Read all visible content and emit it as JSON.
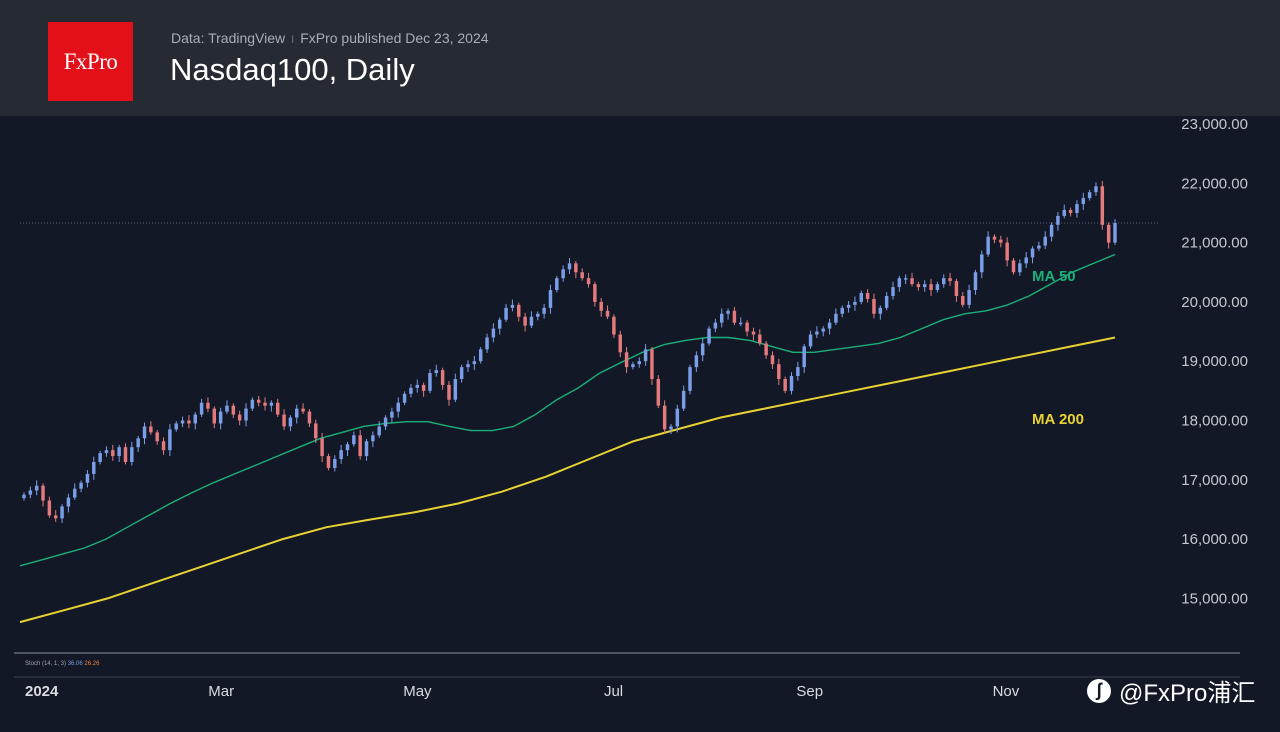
{
  "header": {
    "logo_text": "FxPro",
    "source": "Data: TradingView",
    "publisher": "FxPro published Dec 23, 2024",
    "separator": "I",
    "title": "Nasdaq100, Daily"
  },
  "watermark": {
    "text": "@FxPro浦汇",
    "icon": "weibo-icon"
  },
  "indicator_label": {
    "name": "Stoch (14, 1, 3)",
    "value_k": "36.06",
    "value_d": "26.26"
  },
  "colors": {
    "background": "#121826",
    "header": "#262a33",
    "brand": "#e3101a",
    "up": "#7b9ee8",
    "down": "#e57a7c",
    "ma50": "#1bb07a",
    "ma200": "#e8d232"
  },
  "chart_data": {
    "type": "candlestick",
    "title": "Nasdaq100, Daily",
    "ylim": [
      14300,
      23300
    ],
    "yticks": [
      23000,
      22000,
      21000,
      20000,
      19000,
      18000,
      17000,
      16000,
      15000
    ],
    "ytick_labels": [
      "23,000.00",
      "22,000.00",
      "21,000.00",
      "20,000.00",
      "19,000.00",
      "18,000.00",
      "17,000.00",
      "16,000.00",
      "15,000.00"
    ],
    "xticks": [
      {
        "label": "2024",
        "month": 0
      },
      {
        "label": "Mar",
        "month": 2
      },
      {
        "label": "May",
        "month": 4
      },
      {
        "label": "Jul",
        "month": 6
      },
      {
        "label": "Sep",
        "month": 8
      },
      {
        "label": "Nov",
        "month": 10
      }
    ],
    "last_price": 21330,
    "closes": [
      16750,
      16820,
      16900,
      16650,
      16400,
      16350,
      16550,
      16700,
      16850,
      16950,
      17100,
      17300,
      17450,
      17500,
      17400,
      17550,
      17300,
      17550,
      17700,
      17900,
      17800,
      17650,
      17500,
      17850,
      17950,
      18000,
      17950,
      18100,
      18300,
      18200,
      17950,
      18150,
      18250,
      18100,
      18000,
      18200,
      18350,
      18300,
      18250,
      18300,
      18100,
      17900,
      18050,
      18200,
      18150,
      17950,
      17700,
      17400,
      17200,
      17350,
      17500,
      17600,
      17750,
      17400,
      17650,
      17750,
      17900,
      18050,
      18150,
      18300,
      18450,
      18550,
      18600,
      18500,
      18800,
      18850,
      18600,
      18350,
      18700,
      18900,
      18950,
      19000,
      19200,
      19400,
      19550,
      19700,
      19900,
      19950,
      19750,
      19600,
      19750,
      19800,
      19900,
      20200,
      20400,
      20550,
      20650,
      20500,
      20400,
      20300,
      20000,
      19850,
      19750,
      19450,
      19150,
      18900,
      18950,
      19000,
      19200,
      18700,
      18250,
      17850,
      17900,
      18200,
      18500,
      18900,
      19100,
      19300,
      19550,
      19650,
      19800,
      19850,
      19650,
      19650,
      19500,
      19450,
      19300,
      19100,
      18950,
      18700,
      18500,
      18750,
      18900,
      19250,
      19450,
      19500,
      19550,
      19650,
      19800,
      19900,
      19950,
      20000,
      20150,
      20050,
      19800,
      19900,
      20100,
      20250,
      20400,
      20400,
      20300,
      20250,
      20300,
      20200,
      20300,
      20400,
      20350,
      20100,
      19950,
      20200,
      20500,
      20800,
      21100,
      21050,
      21000,
      20700,
      20500,
      20650,
      20750,
      20900,
      20950,
      21100,
      21300,
      21450,
      21550,
      21500,
      21650,
      21750,
      21850,
      21950,
      21300,
      21000,
      21330
    ],
    "ma50": [
      15550,
      15650,
      15750,
      15850,
      16000,
      16200,
      16400,
      16600,
      16780,
      16950,
      17100,
      17250,
      17400,
      17550,
      17700,
      17800,
      17900,
      17950,
      17980,
      17980,
      17900,
      17830,
      17830,
      17900,
      18100,
      18350,
      18550,
      18800,
      18980,
      19150,
      19280,
      19350,
      19400,
      19400,
      19350,
      19250,
      19150,
      19150,
      19200,
      19250,
      19300,
      19400,
      19550,
      19700,
      19800,
      19850,
      19950,
      20100,
      20300,
      20500,
      20650,
      20800
    ],
    "ma200": [
      14600,
      14800,
      15000,
      15250,
      15500,
      15750,
      16000,
      16200,
      16330,
      16450,
      16600,
      16800,
      17050,
      17350,
      17650,
      17850,
      18050,
      18200,
      18350,
      18500,
      18650,
      18800,
      18950,
      19100,
      19250,
      19400
    ],
    "series_labels": [
      "MA 50",
      "MA 200"
    ]
  }
}
